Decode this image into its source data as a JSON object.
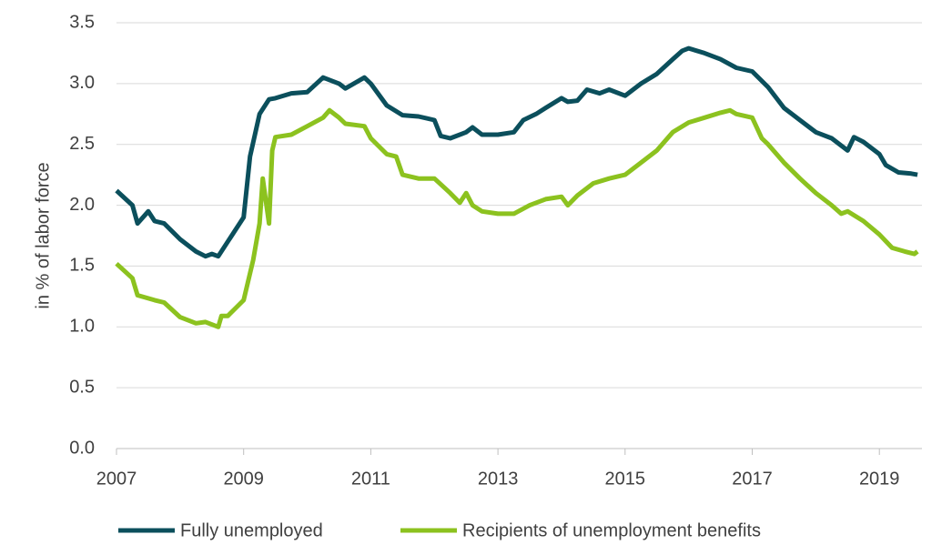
{
  "chart_data": {
    "type": "line",
    "y_label": "in % of labor force",
    "xlim": [
      2007,
      2019.67
    ],
    "xticks": [
      2007,
      2009,
      2011,
      2013,
      2015,
      2017,
      2019
    ],
    "ylim": [
      0,
      3.5
    ],
    "yticks": [
      {
        "value": 0,
        "label": "0.0"
      },
      0.5,
      {
        "value": 1,
        "label": "1.0"
      },
      1.5,
      {
        "value": 2,
        "label": "2.0"
      },
      2.5,
      {
        "value": 3,
        "label": "3.0"
      },
      3.5
    ],
    "grid": true,
    "legend": "bottom",
    "series": [
      {
        "name": "Fully unemployed",
        "color": "#0b4f5c",
        "x": [
          2007.0,
          2007.25,
          2007.33,
          2007.5,
          2007.6,
          2007.75,
          2008.0,
          2008.25,
          2008.4,
          2008.5,
          2008.6,
          2008.75,
          2009.0,
          2009.1,
          2009.25,
          2009.4,
          2009.5,
          2009.75,
          2010.0,
          2010.25,
          2010.5,
          2010.6,
          2010.9,
          2011.0,
          2011.25,
          2011.5,
          2011.75,
          2012.0,
          2012.1,
          2012.25,
          2012.5,
          2012.6,
          2012.75,
          2013.0,
          2013.25,
          2013.4,
          2013.6,
          2013.75,
          2014.0,
          2014.1,
          2014.25,
          2014.4,
          2014.6,
          2014.75,
          2015.0,
          2015.25,
          2015.5,
          2015.75,
          2015.9,
          2016.0,
          2016.25,
          2016.5,
          2016.75,
          2017.0,
          2017.25,
          2017.5,
          2017.75,
          2018.0,
          2018.25,
          2018.5,
          2018.6,
          2018.75,
          2019.0,
          2019.1,
          2019.3,
          2019.5,
          2019.6
        ],
        "values": [
          2.12,
          2.0,
          1.85,
          1.95,
          1.87,
          1.85,
          1.72,
          1.62,
          1.58,
          1.6,
          1.58,
          1.7,
          1.9,
          2.4,
          2.75,
          2.87,
          2.88,
          2.92,
          2.93,
          3.05,
          3.0,
          2.96,
          3.05,
          3.0,
          2.82,
          2.74,
          2.73,
          2.7,
          2.57,
          2.55,
          2.6,
          2.64,
          2.58,
          2.58,
          2.6,
          2.7,
          2.75,
          2.8,
          2.88,
          2.85,
          2.86,
          2.95,
          2.92,
          2.95,
          2.9,
          3.0,
          3.08,
          3.2,
          3.27,
          3.29,
          3.25,
          3.2,
          3.13,
          3.1,
          2.97,
          2.8,
          2.7,
          2.6,
          2.55,
          2.45,
          2.56,
          2.52,
          2.42,
          2.33,
          2.27,
          2.26,
          2.25
        ]
      },
      {
        "name": "Recipients of unemployment benefits",
        "color": "#8cc21f",
        "x": [
          2007.0,
          2007.25,
          2007.33,
          2007.6,
          2007.75,
          2008.0,
          2008.25,
          2008.4,
          2008.6,
          2008.65,
          2008.75,
          2009.0,
          2009.15,
          2009.25,
          2009.3,
          2009.4,
          2009.45,
          2009.5,
          2009.75,
          2010.0,
          2010.25,
          2010.35,
          2010.5,
          2010.6,
          2010.9,
          2011.0,
          2011.25,
          2011.4,
          2011.5,
          2011.75,
          2012.0,
          2012.25,
          2012.4,
          2012.5,
          2012.6,
          2012.75,
          2013.0,
          2013.25,
          2013.5,
          2013.75,
          2014.0,
          2014.1,
          2014.25,
          2014.5,
          2014.75,
          2015.0,
          2015.25,
          2015.5,
          2015.75,
          2016.0,
          2016.25,
          2016.5,
          2016.65,
          2016.75,
          2017.0,
          2017.15,
          2017.25,
          2017.5,
          2017.75,
          2018.0,
          2018.25,
          2018.4,
          2018.5,
          2018.75,
          2019.0,
          2019.2,
          2019.4,
          2019.55,
          2019.6
        ],
        "values": [
          1.52,
          1.4,
          1.26,
          1.22,
          1.2,
          1.08,
          1.03,
          1.04,
          1.0,
          1.09,
          1.09,
          1.22,
          1.55,
          1.85,
          2.22,
          1.85,
          2.45,
          2.56,
          2.58,
          2.65,
          2.72,
          2.78,
          2.72,
          2.67,
          2.65,
          2.55,
          2.42,
          2.4,
          2.25,
          2.22,
          2.22,
          2.1,
          2.02,
          2.1,
          2.0,
          1.95,
          1.93,
          1.93,
          2.0,
          2.05,
          2.07,
          2.0,
          2.08,
          2.18,
          2.22,
          2.25,
          2.35,
          2.45,
          2.6,
          2.68,
          2.72,
          2.76,
          2.78,
          2.75,
          2.72,
          2.55,
          2.5,
          2.35,
          2.22,
          2.1,
          2.0,
          1.93,
          1.95,
          1.87,
          1.76,
          1.65,
          1.62,
          1.6,
          1.62
        ]
      }
    ]
  }
}
